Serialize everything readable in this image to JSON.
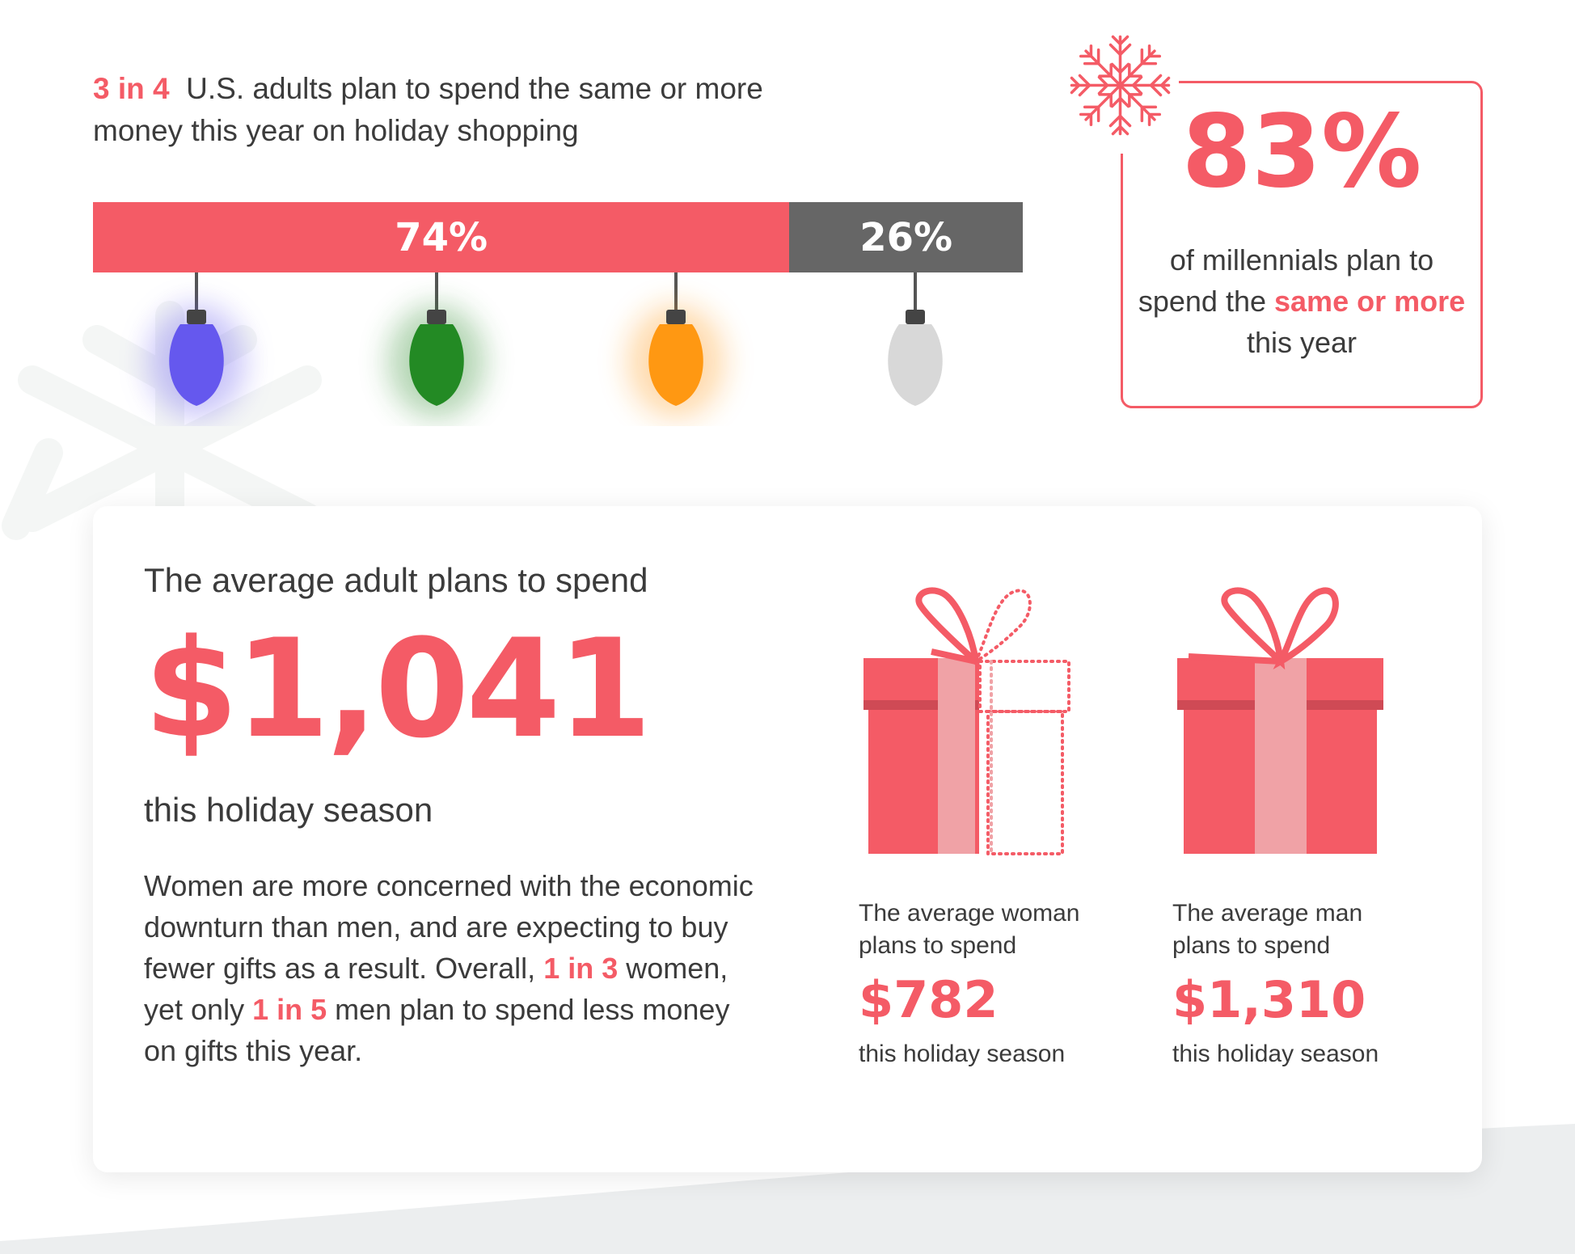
{
  "headline": {
    "highlight": "3 in 4",
    "text": "U.S. adults plan to spend the same or more money this year on holiday shopping"
  },
  "bar_chart": {
    "segments": [
      {
        "label": "74%",
        "value": 74,
        "color": "#f45b66"
      },
      {
        "label": "26%",
        "value": 26,
        "color": "#666666"
      }
    ],
    "bulb_colors": [
      "#6558ee",
      "#2b8a2b",
      "#ff9812",
      "#d6d6d6"
    ]
  },
  "millennials": {
    "value": "83%",
    "text_before": "of millennials plan to spend the",
    "highlight": "same or more",
    "text_after": "this year"
  },
  "average": {
    "label": "The average adult plans to spend",
    "amount": "$1,041",
    "season": "this holiday season"
  },
  "paragraph": {
    "part1": "Women are more concerned with the economic downturn than men, and are expecting to buy fewer gifts as a result. Overall,",
    "highlight1": "1 in 3",
    "part2": "women, yet only",
    "highlight2": "1 in 5",
    "part3": "men plan to spend less money on gifts this year."
  },
  "gifts": {
    "woman": {
      "caption": "The average woman plans to spend",
      "amount": "$782",
      "season": "this holiday season"
    },
    "man": {
      "caption": "The average man plans to spend",
      "amount": "$1,310",
      "season": "this holiday season"
    }
  },
  "colors": {
    "accent": "#f45b66",
    "ribbon": "#f0a2a6",
    "dark_band": "#cf4a55",
    "grey": "#666666"
  }
}
